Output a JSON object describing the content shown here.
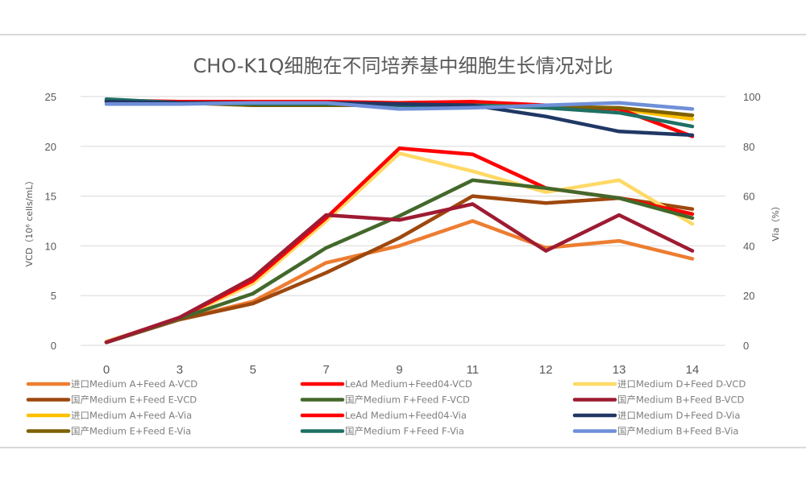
{
  "chart_data": {
    "type": "line",
    "title": "CHO-K1Q细胞在不同培养基中细胞生长情况对比",
    "xlabel": "",
    "ylabel": "VCD（10⁶ cells/mL）",
    "y2label": "Via（%）",
    "categories": [
      "0",
      "3",
      "5",
      "7",
      "9",
      "11",
      "12",
      "13",
      "14"
    ],
    "ylim": [
      0,
      25
    ],
    "yticks": [
      "0",
      "5",
      "10",
      "15",
      "20",
      "25"
    ],
    "y2lim": [
      0,
      100
    ],
    "y2ticks": [
      "0",
      "20",
      "40",
      "60",
      "80",
      "100"
    ],
    "grid": true,
    "legend_position": "bottom",
    "series": [
      {
        "name": "进口Medium A+Feed A-VCD",
        "axis": "left",
        "color": "#ed7d31",
        "values": [
          0.4,
          2.6,
          4.4,
          8.3,
          10.0,
          12.5,
          9.8,
          10.5,
          8.7
        ]
      },
      {
        "name": "LeAd Medium+Feed04-VCD",
        "axis": "left",
        "color": "#ff0000",
        "values": [
          0.3,
          2.8,
          6.5,
          12.8,
          19.8,
          19.2,
          15.8,
          14.8,
          13.2
        ]
      },
      {
        "name": "进口Medium D+Feed D-VCD",
        "axis": "left",
        "color": "#ffd966",
        "values": [
          0.4,
          2.7,
          6.2,
          12.5,
          19.3,
          17.5,
          15.4,
          16.6,
          12.2
        ]
      },
      {
        "name": "国产Medium E+Feed E-VCD",
        "axis": "left",
        "color": "#9e480e",
        "values": [
          0.3,
          2.6,
          4.2,
          7.3,
          10.8,
          15.0,
          14.3,
          14.8,
          13.7
        ]
      },
      {
        "name": "国产Medium F+Feed F-VCD",
        "axis": "left",
        "color": "#43682b",
        "values": [
          0.3,
          2.7,
          5.2,
          9.8,
          13.0,
          16.6,
          15.8,
          14.8,
          12.8
        ]
      },
      {
        "name": "国产Medium B+Feed B-VCD",
        "axis": "left",
        "color": "#9e1b32",
        "values": [
          0.3,
          2.8,
          6.8,
          13.1,
          12.6,
          14.2,
          9.5,
          13.1,
          9.5
        ]
      },
      {
        "name": "进口Medium A+Feed A-Via",
        "axis": "right",
        "color": "#ffc000",
        "values": [
          98,
          97.5,
          96.5,
          96.5,
          96.5,
          96.5,
          96.5,
          95,
          91
        ]
      },
      {
        "name": "LeAd Medium+Feed04-Via",
        "axis": "right",
        "color": "#ff0000",
        "values": [
          98.5,
          98,
          98,
          98,
          97.5,
          98,
          96.5,
          95,
          84
        ]
      },
      {
        "name": "进口Medium D+Feed D-Via",
        "axis": "right",
        "color": "#203864",
        "values": [
          98,
          97.5,
          97.5,
          97.5,
          97,
          96.5,
          92,
          86,
          84.5
        ]
      },
      {
        "name": "国产Medium E+Feed E-Via",
        "axis": "right",
        "color": "#7f6000",
        "values": [
          98,
          97.5,
          96.5,
          96.5,
          96.5,
          96.5,
          96,
          95.5,
          92.5
        ]
      },
      {
        "name": "国产Medium F+Feed F-Via",
        "axis": "right",
        "color": "#1f7064",
        "values": [
          99,
          97.5,
          97,
          97,
          96.5,
          96.5,
          95.5,
          93.5,
          88
        ]
      },
      {
        "name": "国产Medium B+Feed B-Via",
        "axis": "right",
        "color": "#6f8fd8",
        "values": [
          97,
          97,
          97.5,
          97.5,
          95,
          95.5,
          96.5,
          97.5,
          95
        ]
      }
    ]
  }
}
